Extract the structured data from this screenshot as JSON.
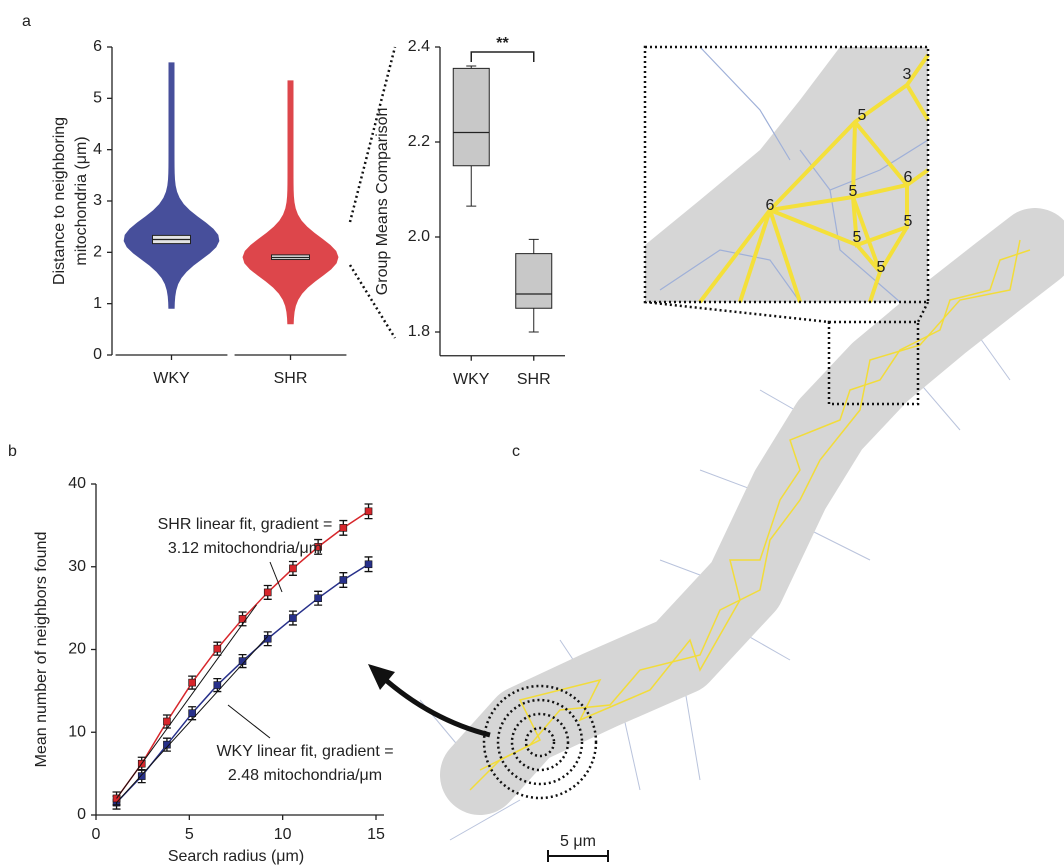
{
  "chart_data": [
    {
      "type": "swarm",
      "panel": "a",
      "ylabel": [
        "Distance to neighboring",
        "mitochondria (μm)"
      ],
      "categories": [
        "WKY",
        "SHR"
      ],
      "colors": [
        "#27308a",
        "#d7262b"
      ],
      "boxes": [
        {
          "min": 0.9,
          "q1": 2.17,
          "median": 2.25,
          "q3": 2.33,
          "max": 5.7
        },
        {
          "min": 0.6,
          "q1": 1.86,
          "median": 1.9,
          "q3": 1.95,
          "max": 5.35
        }
      ],
      "ylim": [
        0,
        6
      ],
      "yticks": [
        0,
        1,
        2,
        3,
        4,
        5,
        6
      ]
    },
    {
      "type": "box",
      "ylabel": "Group Means Comparison",
      "categories": [
        "WKY",
        "SHR"
      ],
      "annotation": "**",
      "boxes": [
        {
          "min": 2.065,
          "q1": 2.15,
          "median": 2.22,
          "q3": 2.355,
          "max": 2.36
        },
        {
          "min": 1.8,
          "q1": 1.85,
          "median": 1.88,
          "q3": 1.965,
          "max": 1.995
        }
      ],
      "ylim": [
        1.75,
        2.4
      ],
      "yticks": [
        1.8,
        {
          "value": 2,
          "label": "2.0"
        },
        2.2,
        2.4
      ]
    },
    {
      "type": "line",
      "panel": "b",
      "xlabel": "Search radius (μm)",
      "ylabel": "Mean number of neighbors found",
      "x": [
        1.1,
        2.45,
        3.8,
        5.15,
        6.5,
        7.85,
        9.2,
        10.55,
        11.9,
        13.25,
        14.6
      ],
      "series": [
        {
          "name": "WKY",
          "color": "#27308a",
          "values": [
            1.5,
            4.7,
            8.5,
            12.3,
            15.7,
            18.6,
            21.3,
            23.8,
            26.2,
            28.4,
            30.3
          ],
          "errors": [
            0.3,
            0.3,
            0.3,
            0.3,
            0.3,
            0.3,
            0.35,
            0.35,
            0.35,
            0.4,
            0.4
          ]
        },
        {
          "name": "SHR",
          "color": "#d7262b",
          "values": [
            2.0,
            6.2,
            11.3,
            16.0,
            20.1,
            23.7,
            26.9,
            29.8,
            32.4,
            34.7,
            36.7
          ],
          "errors": [
            0.3,
            0.3,
            0.3,
            0.3,
            0.3,
            0.35,
            0.35,
            0.35,
            0.4,
            0.4,
            0.4
          ]
        }
      ],
      "fits": [
        {
          "x": [
            1.1,
            9.2
          ],
          "values": [
            1.5,
            21.6
          ],
          "label": [
            "WKY linear fit, gradient =",
            "2.48 mitochondria/μm"
          ]
        },
        {
          "x": [
            1.1,
            8.6
          ],
          "values": [
            2.0,
            25.4
          ],
          "label": [
            "SHR linear fit, gradient =",
            "3.12 mitochondria/μm"
          ]
        }
      ],
      "xlim": [
        0,
        15
      ],
      "xticks": [
        0,
        5,
        10,
        15
      ],
      "ylim": [
        0,
        40
      ],
      "yticks": [
        0,
        10,
        20,
        30,
        40
      ]
    },
    {
      "type": "image",
      "panel": "c",
      "scale_bar": "5 μm",
      "inset_labels": [
        "3",
        "5",
        "6",
        "5",
        "6",
        "5",
        "5",
        "5"
      ]
    }
  ]
}
